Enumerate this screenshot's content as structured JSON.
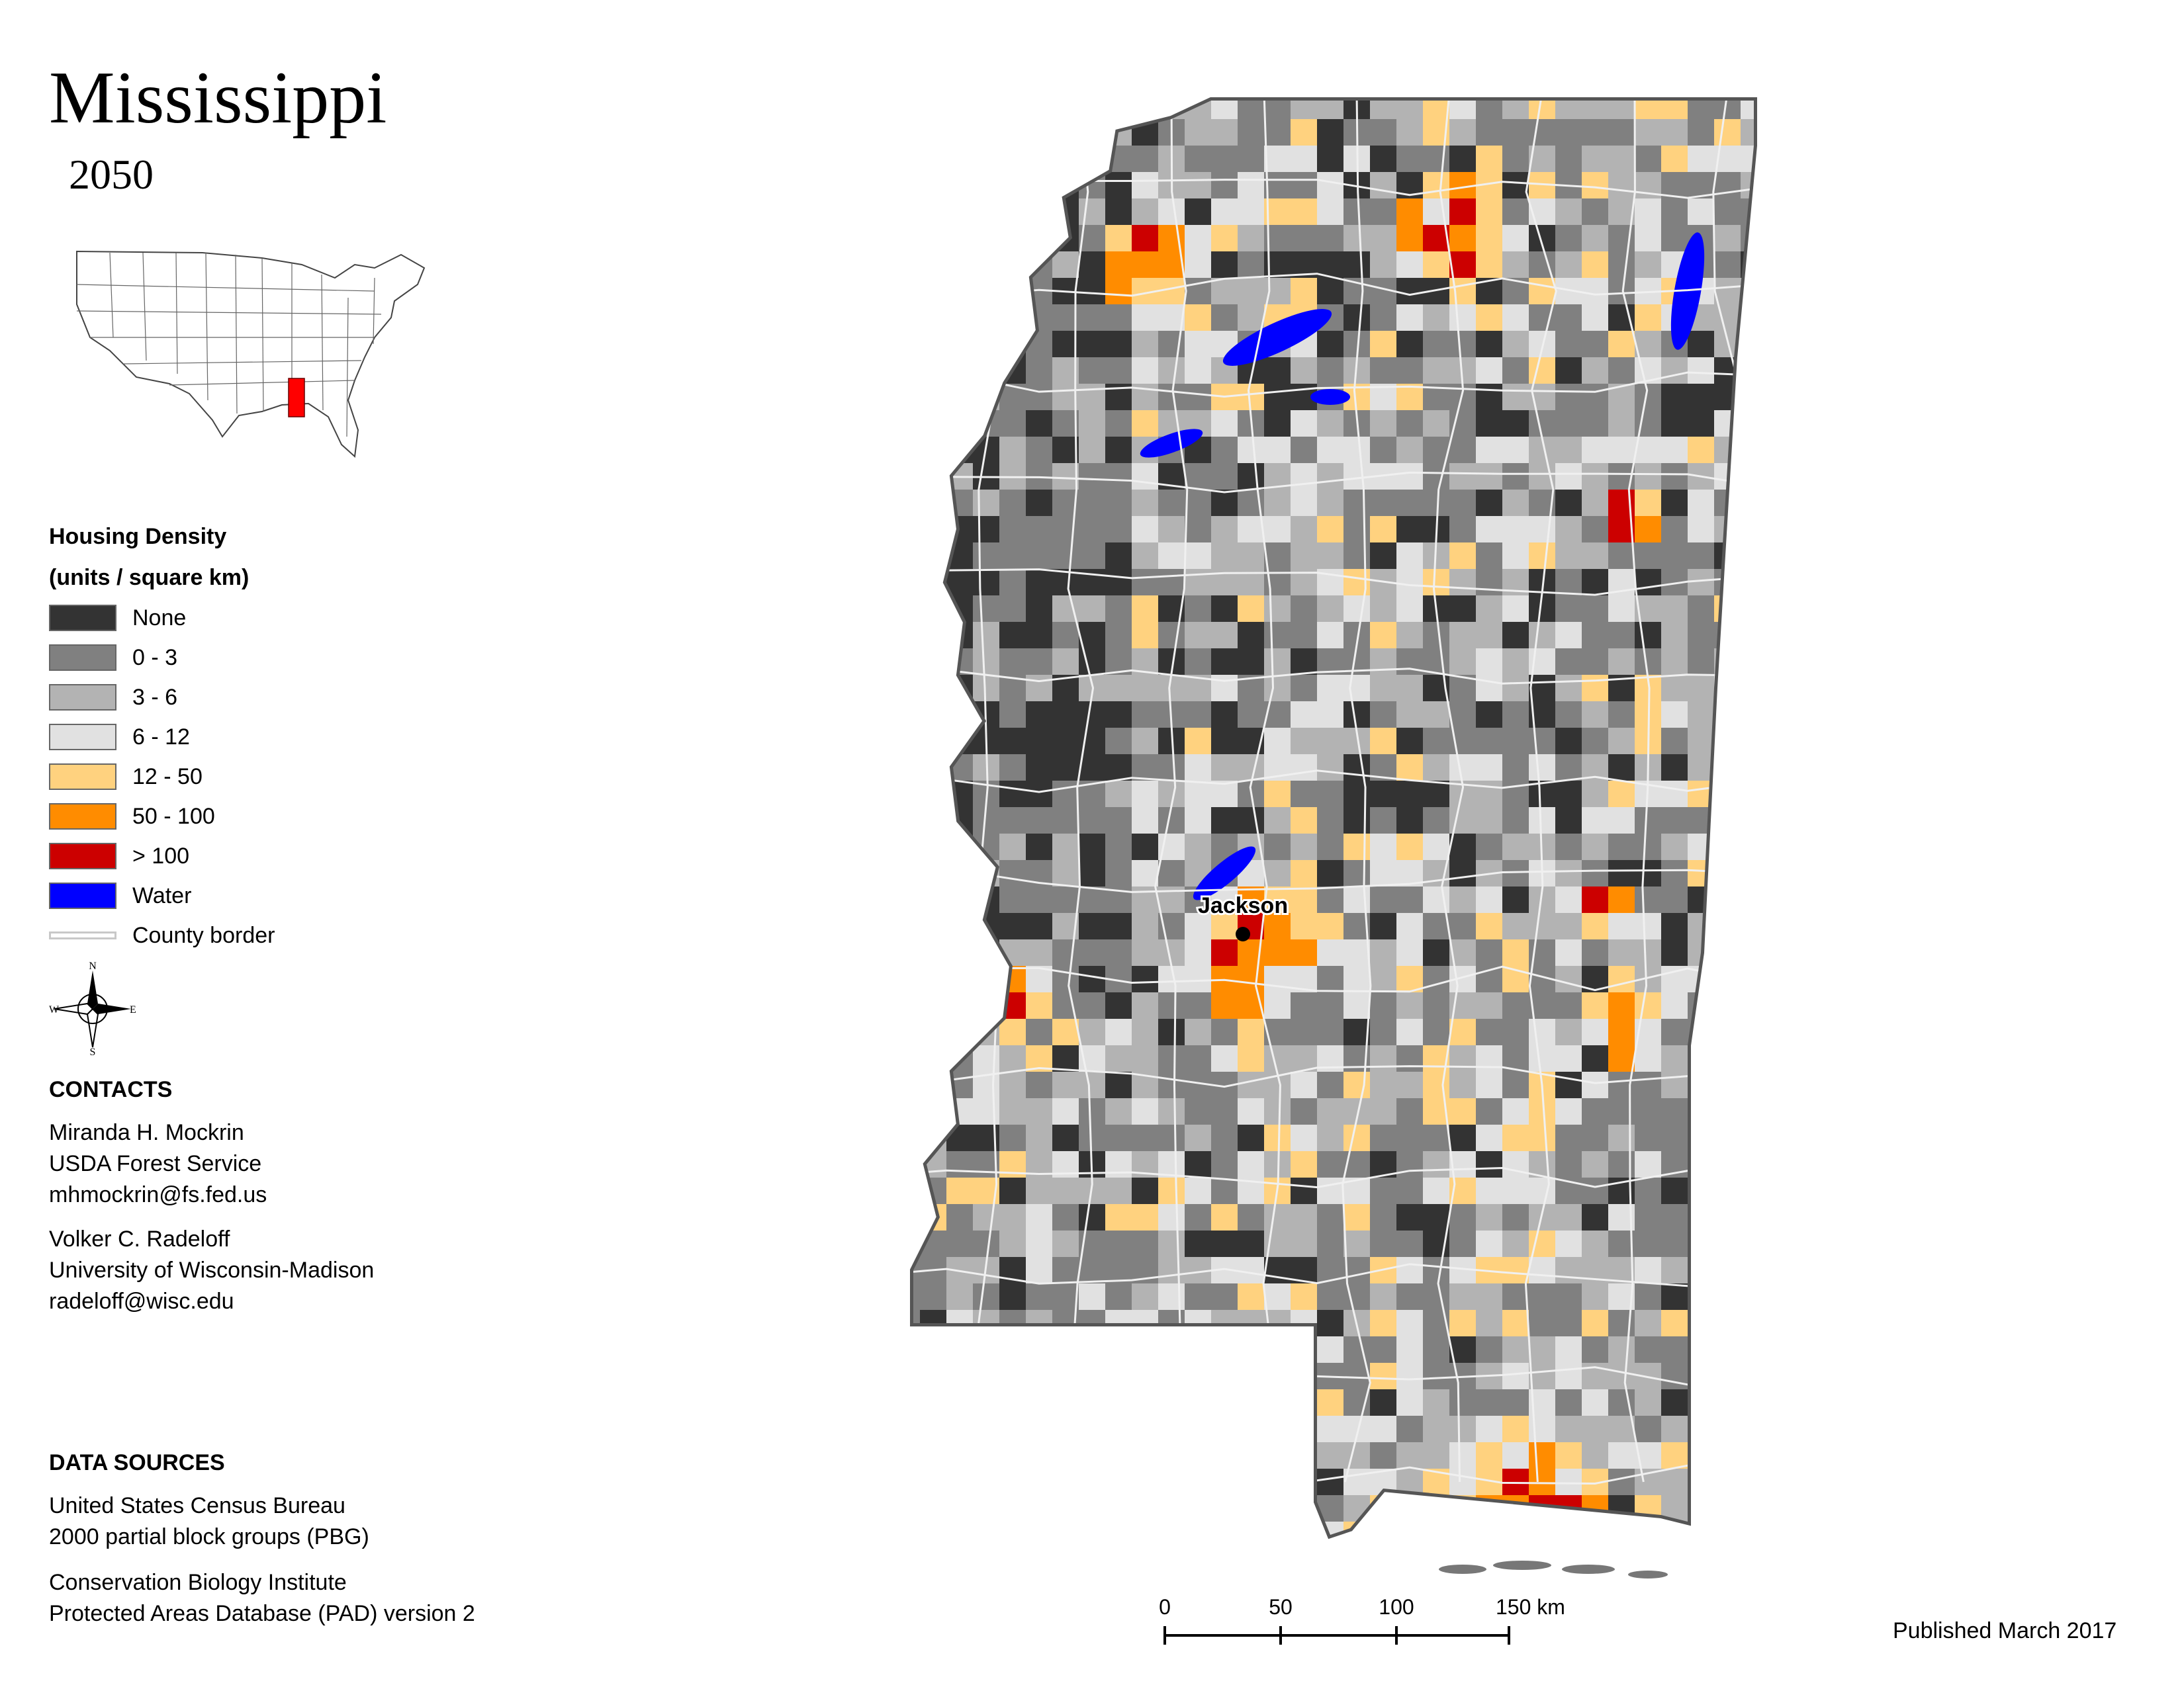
{
  "header": {
    "title": "Mississippi",
    "year": "2050"
  },
  "legend": {
    "title_line1": "Housing Density",
    "title_line2": "(units / square km)",
    "items": [
      {
        "label": "None",
        "color": "#333333"
      },
      {
        "label": "0 - 3",
        "color": "#808080"
      },
      {
        "label": "3 - 6",
        "color": "#b3b3b3"
      },
      {
        "label": "6 - 12",
        "color": "#e1e1e1"
      },
      {
        "label": "12 - 50",
        "color": "#ffd27f"
      },
      {
        "label": "50 - 100",
        "color": "#ff8c00"
      },
      {
        "label": "> 100",
        "color": "#cc0000"
      },
      {
        "label": "Water",
        "color": "#0000ff"
      }
    ],
    "county_border_label": "County border"
  },
  "inset": {
    "highlight_color": "#ff0000"
  },
  "compass": {
    "n": "N",
    "s": "S",
    "e": "E",
    "w": "W"
  },
  "contacts": {
    "title": "CONTACTS",
    "people": [
      {
        "name": "Miranda H. Mockrin",
        "org": "USDA Forest Service",
        "email": "mhmockrin@fs.fed.us"
      },
      {
        "name": "Volker C. Radeloff",
        "org": "University of Wisconsin-Madison",
        "email": "radeloff@wisc.edu"
      }
    ]
  },
  "sources": {
    "title": "DATA SOURCES",
    "lines": [
      "United States Census Bureau",
      "2000 partial block groups (PBG)",
      "Conservation Biology Institute",
      "Protected Areas Database (PAD) version 2"
    ]
  },
  "map": {
    "city_label": "Jackson"
  },
  "scalebar": {
    "ticks": [
      "0",
      "50",
      "100",
      "150 km"
    ]
  },
  "footer": {
    "published": "Published March 2017"
  }
}
